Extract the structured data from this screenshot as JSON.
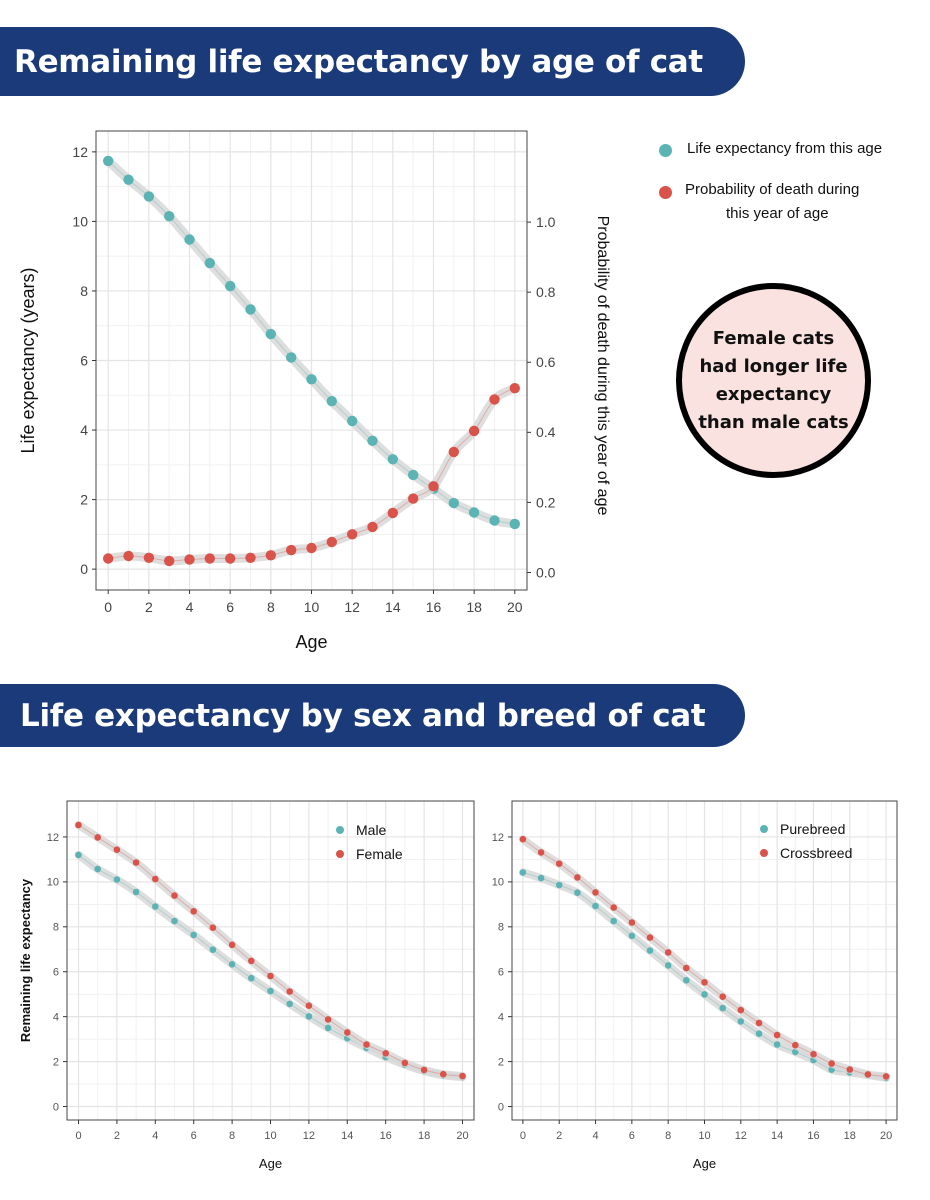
{
  "headings": {
    "top": "Remaining life expectancy by age of cat",
    "bottom": "Life expectancy by sex and breed of cat"
  },
  "legend_top": {
    "life": "Life expectancy from this age",
    "death_line1": "Probability of death during",
    "death_line2": "this year of age"
  },
  "callout": "Female cats had longer life expectancy than male cats",
  "colors": {
    "teal": "#5bb3b3",
    "red": "#d9534a",
    "banner": "#1b3a7a",
    "callout_bg": "#f9e2e0"
  },
  "chart_data": [
    {
      "type": "scatter",
      "title": "Remaining life expectancy by age of cat",
      "xlabel": "Age",
      "ylabel": "Life expectancy (years)",
      "y2label": "Probability of death during this year of age",
      "xlim": [
        -0.6,
        20.6
      ],
      "ylim": [
        -0.6,
        12.6
      ],
      "y2lim": [
        -0.05,
        1.26
      ],
      "xticks": [
        0,
        2,
        4,
        6,
        8,
        10,
        12,
        14,
        16,
        18,
        20
      ],
      "yticks": [
        0,
        2,
        4,
        6,
        8,
        10,
        12
      ],
      "y2ticks": [
        "0.0",
        "0.2",
        "0.4",
        "0.6",
        "0.8",
        "1.0"
      ],
      "x": [
        0,
        1,
        2,
        3,
        4,
        5,
        6,
        7,
        8,
        9,
        10,
        11,
        12,
        13,
        14,
        15,
        16,
        17,
        18,
        19,
        20
      ],
      "series": [
        {
          "name": "Life expectancy from this age",
          "axis": "left",
          "color": "#5bb3b3",
          "values": [
            11.74,
            11.2,
            10.72,
            10.15,
            9.48,
            8.8,
            8.14,
            7.47,
            6.76,
            6.09,
            5.46,
            4.83,
            4.26,
            3.69,
            3.16,
            2.71,
            2.31,
            1.9,
            1.63,
            1.4,
            1.3
          ]
        },
        {
          "name": "Probability of death during this year of age",
          "axis": "right",
          "color": "#d9534a",
          "values": [
            0.04,
            0.047,
            0.042,
            0.033,
            0.037,
            0.04,
            0.04,
            0.042,
            0.049,
            0.064,
            0.07,
            0.087,
            0.109,
            0.13,
            0.17,
            0.211,
            0.246,
            0.344,
            0.404,
            0.494,
            0.526
          ]
        }
      ]
    },
    {
      "type": "scatter",
      "xlabel": "Age",
      "ylabel": "Remaining life expectancy",
      "legend": "top-right",
      "xlim": [
        -0.6,
        20.6
      ],
      "ylim": [
        -0.6,
        13.6
      ],
      "xticks": [
        0,
        2,
        4,
        6,
        8,
        10,
        12,
        14,
        16,
        18,
        20
      ],
      "yticks": [
        0,
        2,
        4,
        6,
        8,
        10,
        12
      ],
      "x": [
        0,
        1,
        2,
        3,
        4,
        5,
        6,
        7,
        8,
        9,
        10,
        11,
        12,
        13,
        14,
        15,
        16,
        17,
        18,
        19,
        20
      ],
      "series": [
        {
          "name": "Male",
          "color": "#5bb3b3",
          "values": [
            11.2,
            10.57,
            10.1,
            9.55,
            8.9,
            8.26,
            7.64,
            6.98,
            6.33,
            5.71,
            5.14,
            4.57,
            4.01,
            3.5,
            3.04,
            2.61,
            2.2,
            1.86,
            1.58,
            1.39,
            1.31
          ]
        },
        {
          "name": "Female",
          "color": "#d9534a",
          "values": [
            12.53,
            11.98,
            11.43,
            10.86,
            10.13,
            9.39,
            8.69,
            7.96,
            7.2,
            6.48,
            5.81,
            5.12,
            4.49,
            3.88,
            3.3,
            2.76,
            2.37,
            1.94,
            1.63,
            1.44,
            1.36
          ]
        }
      ]
    },
    {
      "type": "scatter",
      "xlabel": "Age",
      "ylabel": "",
      "legend": "top-right",
      "xlim": [
        -0.6,
        20.6
      ],
      "ylim": [
        -0.6,
        13.6
      ],
      "xticks": [
        0,
        2,
        4,
        6,
        8,
        10,
        12,
        14,
        16,
        18,
        20
      ],
      "yticks": [
        0,
        2,
        4,
        6,
        8,
        10,
        12
      ],
      "x": [
        0,
        1,
        2,
        3,
        4,
        5,
        6,
        7,
        8,
        9,
        10,
        11,
        12,
        13,
        14,
        15,
        16,
        17,
        18,
        19,
        20
      ],
      "series": [
        {
          "name": "Purebreed",
          "color": "#5bb3b3",
          "values": [
            10.42,
            10.17,
            9.86,
            9.52,
            8.92,
            8.26,
            7.6,
            6.94,
            6.28,
            5.62,
            4.99,
            4.38,
            3.79,
            3.24,
            2.76,
            2.43,
            2.07,
            1.64,
            1.52,
            1.4,
            1.28
          ]
        },
        {
          "name": "Crossbreed",
          "color": "#d9534a",
          "values": [
            11.9,
            11.31,
            10.81,
            10.2,
            9.53,
            8.86,
            8.19,
            7.52,
            6.86,
            6.16,
            5.53,
            4.89,
            4.29,
            3.72,
            3.18,
            2.73,
            2.33,
            1.91,
            1.65,
            1.43,
            1.34
          ]
        }
      ]
    }
  ]
}
